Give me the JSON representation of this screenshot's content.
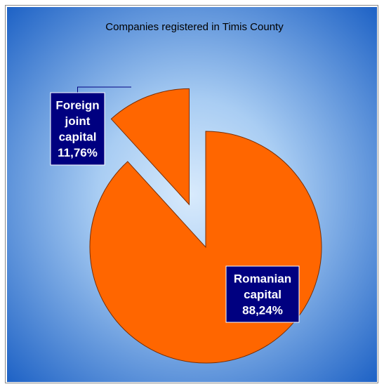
{
  "chart_data": {
    "type": "pie",
    "title": "Companies registered in Timis County",
    "categories": [
      "Romanian capital",
      "Foreign joint capital"
    ],
    "values": [
      88.24,
      11.76
    ],
    "data_labels": [
      [
        "Romanian",
        "capital",
        "88,24%"
      ],
      [
        "Foreign",
        "joint",
        "capital",
        "11,76%"
      ]
    ],
    "exploded": [
      false,
      true
    ],
    "legend": "none",
    "colors": {
      "slice": "#ff6600",
      "slice_border": "#7a2e00",
      "label_box": "#000080",
      "background_center": "#d6e8fb",
      "background_edge": "#1a62c4"
    }
  }
}
